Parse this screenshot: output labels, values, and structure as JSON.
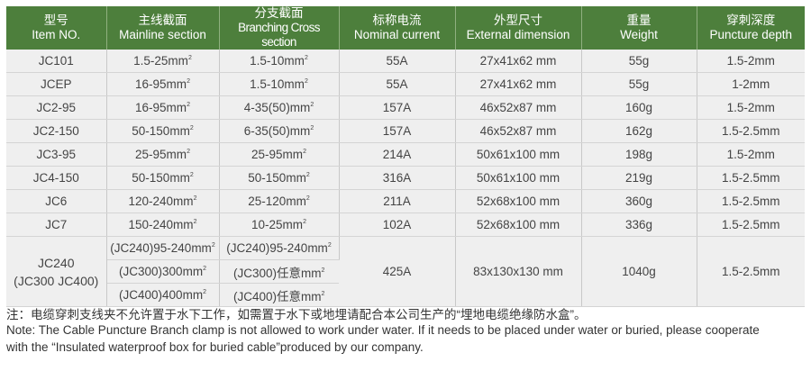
{
  "headers": [
    {
      "cn": "型号",
      "en": "Item NO."
    },
    {
      "cn": "主线截面",
      "en": "Mainline section"
    },
    {
      "cn": "分支截面",
      "en": "Branching Cross section"
    },
    {
      "cn": "标称电流",
      "en": "Nominal current"
    },
    {
      "cn": "外型尺寸",
      "en": "External dimension"
    },
    {
      "cn": "重量",
      "en": "Weight"
    },
    {
      "cn": "穿刺深度",
      "en": "Puncture depth"
    }
  ],
  "rows": [
    [
      "JC101",
      "1.5-25mm",
      "1.5-10mm",
      "55A",
      "27x41x62 mm",
      "55g",
      "1.5-2mm"
    ],
    [
      "JCEP",
      "16-95mm",
      "1.5-10mm",
      "55A",
      "27x41x62 mm",
      "55g",
      "1-2mm"
    ],
    [
      "JC2-95",
      "16-95mm",
      "4-35(50)mm",
      "157A",
      "46x52x87 mm",
      "160g",
      "1.5-2mm"
    ],
    [
      "JC2-150",
      "50-150mm",
      "6-35(50)mm",
      "157A",
      "46x52x87 mm",
      "162g",
      "1.5-2.5mm"
    ],
    [
      "JC3-95",
      "25-95mm",
      "25-95mm",
      "214A",
      "50x61x100 mm",
      "198g",
      "1.5-2mm"
    ],
    [
      "JC4-150",
      "50-150mm",
      "50-150mm",
      "316A",
      "50x61x100 mm",
      "219g",
      "1.5-2.5mm"
    ],
    [
      "JC6",
      "120-240mm",
      "25-120mm",
      "211A",
      "52x68x100 mm",
      "360g",
      "1.5-2.5mm"
    ],
    [
      "JC7",
      "150-240mm",
      "10-25mm",
      "102A",
      "52x68x100 mm",
      "336g",
      "1.5-2.5mm"
    ]
  ],
  "group": {
    "item": "JC240",
    "item2": "(JC300 JC400)",
    "main": [
      "(JC240)95-240mm",
      "(JC300)300mm",
      "(JC400)400mm"
    ],
    "branch": [
      "(JC240)95-240mm",
      "(JC300)任意mm",
      "(JC400)任意mm"
    ],
    "current": "425A",
    "dimension": "83x130x130 mm",
    "weight": "1040g",
    "depth": "1.5-2.5mm"
  },
  "sup": "2",
  "notes": {
    "cn": "注：电缆穿刺支线夹不允许置于水下工作，如需置于水下或地埋请配合本公司生产的“埋地电缆绝缘防水盒”。",
    "en1": "Note: The Cable Puncture Branch clamp is not allowed to work under water. If it needs to be placed under water or buried, please cooperate",
    "en2": "with the “Insulated waterproof box for buried cable”produced by our company."
  },
  "colors": {
    "header": "#4d7f3c",
    "row": "#efefef"
  }
}
